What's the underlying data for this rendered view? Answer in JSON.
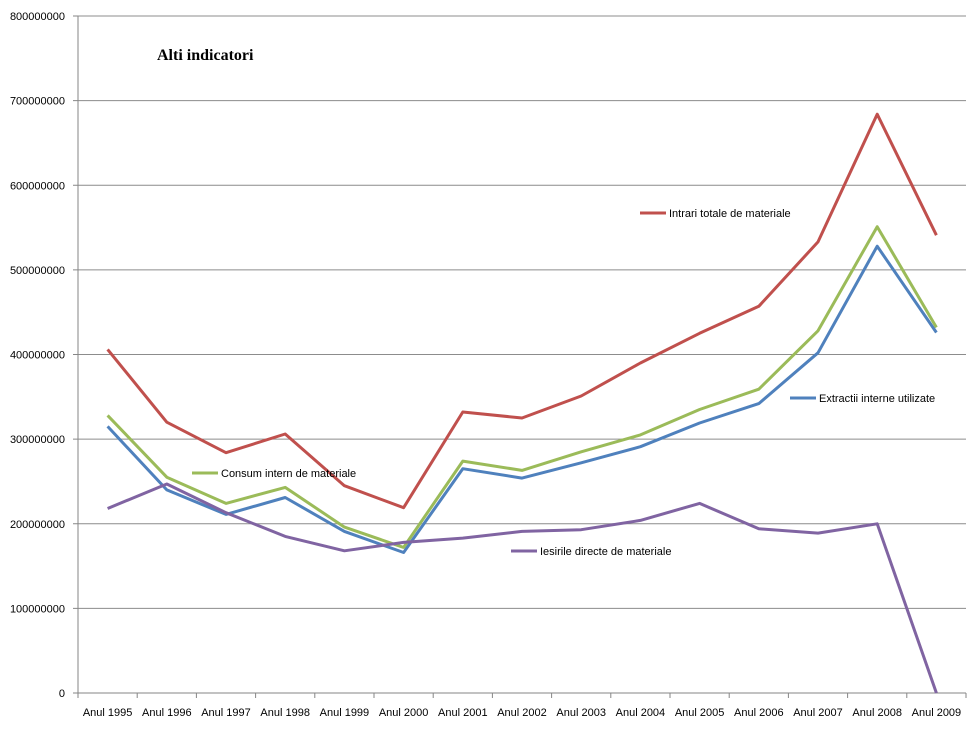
{
  "chart_data": {
    "type": "line",
    "title": "Alti indicatori",
    "xlabel": "",
    "ylabel": "",
    "categories": [
      "Anul 1995",
      "Anul 1996",
      "Anul 1997",
      "Anul 1998",
      "Anul 1999",
      "Anul 2000",
      "Anul 2001",
      "Anul 2002",
      "Anul 2003",
      "Anul 2004",
      "Anul 2005",
      "Anul 2006",
      "Anul 2007",
      "Anul 2008",
      "Anul 2009"
    ],
    "ylim": [
      0,
      800000000
    ],
    "yticks": [
      "0",
      "100000000",
      "200000000",
      "300000000",
      "400000000",
      "500000000",
      "600000000",
      "700000000",
      "800000000"
    ],
    "grid": true,
    "series": [
      {
        "name": "Intrari totale de materiale",
        "color": "#C0504D",
        "values": [
          406000000,
          320000000,
          284000000,
          306000000,
          245000000,
          219000000,
          332000000,
          325000000,
          351000000,
          390000000,
          425000000,
          457000000,
          533000000,
          684000000,
          541000000
        ]
      },
      {
        "name": "Consum intern de materiale",
        "color": "#9BBB59",
        "values": [
          328000000,
          255000000,
          224000000,
          243000000,
          196000000,
          172000000,
          274000000,
          263000000,
          285000000,
          305000000,
          335000000,
          359000000,
          428000000,
          551000000,
          432000000
        ]
      },
      {
        "name": "Extractii interne utilizate",
        "color": "#4F81BD",
        "values": [
          315000000,
          240000000,
          211000000,
          231000000,
          191000000,
          166000000,
          265000000,
          254000000,
          272000000,
          291000000,
          319000000,
          342000000,
          402000000,
          528000000,
          426000000
        ]
      },
      {
        "name": "Iesirile directe de materiale",
        "color": "#8064A2",
        "values": [
          218000000,
          247000000,
          213000000,
          185000000,
          168000000,
          178000000,
          183000000,
          191000000,
          193000000,
          204000000,
          224000000,
          194000000,
          189000000,
          200000000,
          0
        ]
      }
    ]
  }
}
